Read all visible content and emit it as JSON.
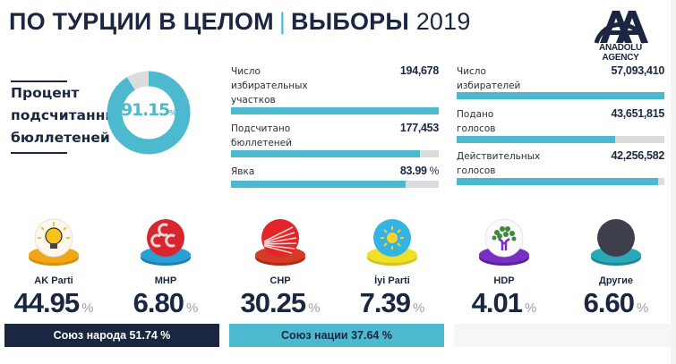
{
  "header": {
    "title_main": "ПО ТУРЦИИ В ЦЕЛОМ",
    "separator": "|",
    "title_sub": "ВЫБОРЫ",
    "year": "2019"
  },
  "logo": {
    "name": "anadolu-agency-logo",
    "text": "ANADOLU AGENCY"
  },
  "counted": {
    "label_lines": [
      "Процент",
      "подсчитанны",
      "бюллетеней"
    ],
    "value": "91.15",
    "unit": "%",
    "percent": 91.15
  },
  "stats_middle": [
    {
      "label_lines": [
        "Число",
        "избирательных",
        "участков"
      ],
      "value": "194,678",
      "unit": "",
      "fill_percent": 100
    },
    {
      "label_lines": [
        "Подсчитано",
        "бюллетеней"
      ],
      "value": "177,453",
      "unit": "",
      "fill_percent": 91.15
    },
    {
      "label_lines": [
        "Явка"
      ],
      "value": "83.99",
      "unit": "%",
      "fill_percent": 83.99
    }
  ],
  "stats_right": [
    {
      "label_lines": [
        "Число",
        "избирателей"
      ],
      "value": "57,093,410",
      "unit": "",
      "fill_percent": 100
    },
    {
      "label_lines": [
        "Подано",
        "голосов"
      ],
      "value": "43,651,815",
      "unit": "",
      "fill_percent": 76.5
    },
    {
      "label_lines": [
        "Действительных",
        "голосов"
      ],
      "value": "42,256,582",
      "unit": "",
      "fill_percent": 96.8
    }
  ],
  "parties": [
    {
      "name": "AK Parti",
      "value": "44.95",
      "unit": "%",
      "icon": "lightbulb-icon",
      "base_color": "#f2a516",
      "disc_color": "#ffffff"
    },
    {
      "name": "MHP",
      "value": "6.80",
      "unit": "%",
      "icon": "three-crescents-icon",
      "base_color": "#2a9fd6",
      "disc_color": "#d8262f"
    },
    {
      "name": "CHP",
      "value": "30.25",
      "unit": "%",
      "icon": "six-arrows-icon",
      "base_color": "#d43a25",
      "disc_color": "#e3242b"
    },
    {
      "name": "İyi Parti",
      "value": "7.39",
      "unit": "%",
      "icon": "sun-icon",
      "base_color": "#f1e02a",
      "disc_color": "#35b3e3"
    },
    {
      "name": "HDP",
      "value": "4.01",
      "unit": "%",
      "icon": "tree-icon",
      "base_color": "#7a2fc4",
      "disc_color": "#ffffff"
    },
    {
      "name": "Другие",
      "value": "6.60",
      "unit": "%",
      "icon": "dark-circle-icon",
      "base_color": "#2aa7b8",
      "disc_color": "#3d3f4c"
    }
  ],
  "alliances": [
    {
      "label": "Союз народа 51.74 %",
      "color": "#1b2741"
    },
    {
      "label": "Союз нации 37.64 %",
      "color": "#4cb9cf"
    }
  ],
  "colors": {
    "accent": "#4cb9cf",
    "navy": "#1b2741",
    "track": "#dcdcdc"
  },
  "chart_data": {
    "type": "bar",
    "title": "ПО ТУРЦИИ В ЦЕЛОМ | ВЫБОРЫ 2019",
    "categories": [
      "AK Parti",
      "MHP",
      "CHP",
      "İyi Parti",
      "HDP",
      "Другие"
    ],
    "values": [
      44.95,
      6.8,
      30.25,
      7.39,
      4.01,
      6.6
    ],
    "unit": "%",
    "counted_percent": 91.15,
    "stats": {
      "Число избирательных участков": 194678,
      "Подсчитано бюллетеней": 177453,
      "Явка (%)": 83.99,
      "Число избирателей": 57093410,
      "Подано голосов": 43651815,
      "Действительных голосов": 42256582
    },
    "alliances": [
      {
        "name": "Союз народа",
        "value": 51.74
      },
      {
        "name": "Союз нации",
        "value": 37.64
      }
    ],
    "xlabel": "",
    "ylabel": "",
    "legend": "none"
  }
}
